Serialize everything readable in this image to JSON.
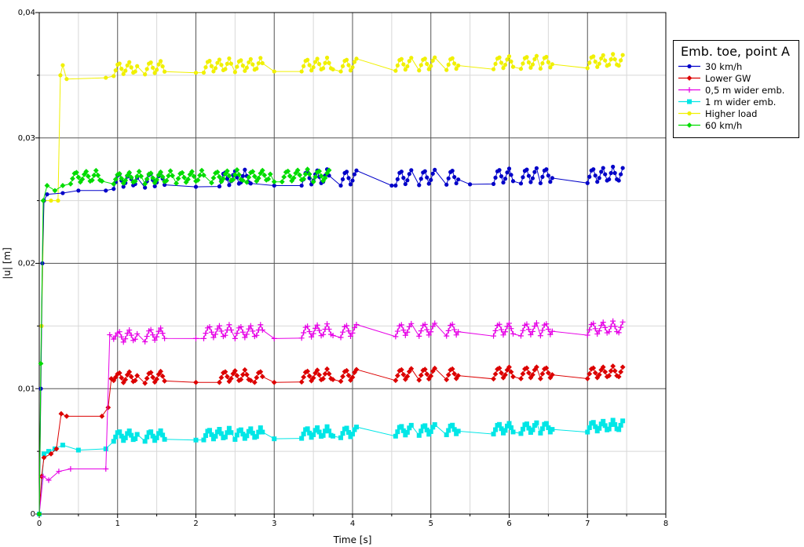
{
  "chart_data": {
    "type": "line",
    "title": "",
    "xlabel": "Time [s]",
    "ylabel": "|u| [m]",
    "xlim": [
      0,
      8
    ],
    "ylim": [
      0,
      0.04
    ],
    "xticks": [
      "0",
      "1",
      "2",
      "3",
      "4",
      "5",
      "6",
      "7",
      "8"
    ],
    "yticks": [
      "0",
      "0,01",
      "0,02",
      "0,03",
      "0,04"
    ],
    "grid": true,
    "legend": {
      "title": "Emb. toe, point A",
      "placement": "right"
    },
    "series": [
      {
        "name": "30 km/h",
        "color": "#0000c8",
        "marker": "circle",
        "points": [
          [
            0,
            0
          ],
          [
            0.02,
            0.01
          ],
          [
            0.04,
            0.02
          ],
          [
            0.06,
            0.025
          ],
          [
            0.1,
            0.0255
          ],
          [
            0.3,
            0.0256
          ],
          [
            0.5,
            0.0258
          ],
          [
            0.85,
            0.0258
          ],
          [
            1.0,
            0.026
          ],
          [
            2.0,
            0.0261
          ],
          [
            3.0,
            0.0262
          ],
          [
            4.5,
            0.0262
          ],
          [
            5.5,
            0.0263
          ],
          [
            6.5,
            0.0264
          ],
          [
            7.45,
            0.0264
          ]
        ],
        "bursts": [
          [
            0.95,
            1.25
          ],
          [
            1.35,
            1.6
          ],
          [
            2.3,
            2.7
          ],
          [
            3.35,
            3.7
          ],
          [
            3.85,
            4.05
          ],
          [
            4.55,
            4.75
          ],
          [
            4.85,
            5.05
          ],
          [
            5.2,
            5.35
          ],
          [
            5.8,
            6.05
          ],
          [
            6.15,
            6.35
          ],
          [
            6.4,
            6.55
          ],
          [
            7.0,
            7.45
          ]
        ],
        "burst_amp": 0.0013
      },
      {
        "name": "Lower GW",
        "color": "#dc0000",
        "marker": "diamond",
        "points": [
          [
            0,
            0
          ],
          [
            0.03,
            0.003
          ],
          [
            0.06,
            0.0045
          ],
          [
            0.15,
            0.0048
          ],
          [
            0.22,
            0.0052
          ],
          [
            0.28,
            0.008
          ],
          [
            0.35,
            0.0078
          ],
          [
            0.8,
            0.0078
          ],
          [
            0.88,
            0.0085
          ],
          [
            0.92,
            0.0108
          ],
          [
            1.0,
            0.0104
          ],
          [
            2.0,
            0.0105
          ],
          [
            3.0,
            0.0105
          ],
          [
            4.0,
            0.0106
          ],
          [
            5.0,
            0.0107
          ],
          [
            6.0,
            0.0108
          ],
          [
            7.45,
            0.0108
          ]
        ],
        "bursts": [
          [
            0.95,
            1.25
          ],
          [
            1.35,
            1.6
          ],
          [
            2.3,
            2.7
          ],
          [
            2.75,
            2.85
          ],
          [
            3.35,
            3.75
          ],
          [
            3.85,
            4.05
          ],
          [
            4.55,
            4.75
          ],
          [
            4.85,
            5.05
          ],
          [
            5.2,
            5.35
          ],
          [
            5.8,
            6.05
          ],
          [
            6.15,
            6.35
          ],
          [
            6.4,
            6.55
          ],
          [
            7.0,
            7.45
          ]
        ],
        "burst_amp": 0.001
      },
      {
        "name": "0,5 m wider emb.",
        "color": "#e600e6",
        "marker": "plus",
        "points": [
          [
            0,
            0
          ],
          [
            0.05,
            0.003
          ],
          [
            0.12,
            0.0027
          ],
          [
            0.25,
            0.0034
          ],
          [
            0.4,
            0.0036
          ],
          [
            0.85,
            0.0036
          ],
          [
            0.9,
            0.0143
          ],
          [
            1.0,
            0.0136
          ],
          [
            2.0,
            0.014
          ],
          [
            3.0,
            0.014
          ],
          [
            4.0,
            0.0141
          ],
          [
            5.0,
            0.0142
          ],
          [
            6.0,
            0.0142
          ],
          [
            7.45,
            0.0143
          ]
        ],
        "bursts": [
          [
            0.95,
            1.25
          ],
          [
            1.35,
            1.6
          ],
          [
            2.1,
            2.45
          ],
          [
            2.5,
            2.85
          ],
          [
            3.35,
            3.75
          ],
          [
            3.85,
            4.05
          ],
          [
            4.55,
            4.75
          ],
          [
            4.85,
            5.05
          ],
          [
            5.2,
            5.35
          ],
          [
            5.8,
            6.05
          ],
          [
            6.15,
            6.35
          ],
          [
            6.4,
            6.55
          ],
          [
            7.0,
            7.45
          ]
        ],
        "burst_amp": 0.0011
      },
      {
        "name": "1 m wider emb.",
        "color": "#00e6e6",
        "marker": "square",
        "points": [
          [
            0,
            0
          ],
          [
            0.06,
            0.0048
          ],
          [
            0.12,
            0.005
          ],
          [
            0.2,
            0.0052
          ],
          [
            0.3,
            0.0055
          ],
          [
            0.5,
            0.0051
          ],
          [
            0.85,
            0.0052
          ],
          [
            0.95,
            0.0058
          ],
          [
            1.5,
            0.0058
          ],
          [
            2.0,
            0.0059
          ],
          [
            3.0,
            0.006
          ],
          [
            4.0,
            0.0061
          ],
          [
            5.0,
            0.0063
          ],
          [
            6.0,
            0.0064
          ],
          [
            7.45,
            0.0066
          ]
        ],
        "bursts": [
          [
            0.95,
            1.25
          ],
          [
            1.35,
            1.6
          ],
          [
            2.1,
            2.45
          ],
          [
            2.5,
            2.85
          ],
          [
            3.35,
            3.75
          ],
          [
            3.85,
            4.05
          ],
          [
            4.55,
            4.75
          ],
          [
            4.85,
            5.05
          ],
          [
            5.2,
            5.35
          ],
          [
            5.8,
            6.05
          ],
          [
            6.15,
            6.35
          ],
          [
            6.4,
            6.55
          ],
          [
            7.0,
            7.45
          ]
        ],
        "burst_amp": 0.0009
      },
      {
        "name": "Higher load",
        "color": "#f0f000",
        "marker": "circle",
        "points": [
          [
            0,
            0
          ],
          [
            0.03,
            0.015
          ],
          [
            0.06,
            0.025
          ],
          [
            0.15,
            0.025
          ],
          [
            0.24,
            0.025
          ],
          [
            0.27,
            0.035
          ],
          [
            0.3,
            0.0358
          ],
          [
            0.35,
            0.0347
          ],
          [
            0.85,
            0.0348
          ],
          [
            1.0,
            0.035
          ],
          [
            2.0,
            0.0352
          ],
          [
            3.0,
            0.0353
          ],
          [
            4.0,
            0.0353
          ],
          [
            5.0,
            0.0354
          ],
          [
            6.0,
            0.0355
          ],
          [
            7.45,
            0.0356
          ]
        ],
        "bursts": [
          [
            0.95,
            1.25
          ],
          [
            1.35,
            1.6
          ],
          [
            2.1,
            2.45
          ],
          [
            2.5,
            2.85
          ],
          [
            3.35,
            3.75
          ],
          [
            3.85,
            4.05
          ],
          [
            4.55,
            4.75
          ],
          [
            4.85,
            5.05
          ],
          [
            5.2,
            5.35
          ],
          [
            5.8,
            6.05
          ],
          [
            6.15,
            6.35
          ],
          [
            6.4,
            6.55
          ],
          [
            7.0,
            7.45
          ]
        ],
        "burst_amp": 0.0011
      },
      {
        "name": "60 km/h",
        "color": "#00dc00",
        "marker": "diamond",
        "points": [
          [
            0,
            0
          ],
          [
            0.02,
            0.012
          ],
          [
            0.05,
            0.025
          ],
          [
            0.1,
            0.0262
          ],
          [
            0.2,
            0.0258
          ],
          [
            0.3,
            0.0262
          ],
          [
            0.45,
            0.0264
          ],
          [
            0.8,
            0.0264
          ],
          [
            1.0,
            0.0263
          ],
          [
            2.0,
            0.0264
          ],
          [
            3.0,
            0.0265
          ],
          [
            3.7,
            0.0265
          ]
        ],
        "bursts": [
          [
            0.4,
            0.8
          ],
          [
            0.95,
            1.3
          ],
          [
            1.35,
            1.7
          ],
          [
            1.75,
            2.1
          ],
          [
            2.2,
            2.6
          ],
          [
            2.65,
            2.95
          ],
          [
            3.1,
            3.45
          ],
          [
            3.5,
            3.7
          ]
        ],
        "burst_amp": 0.001
      }
    ]
  }
}
